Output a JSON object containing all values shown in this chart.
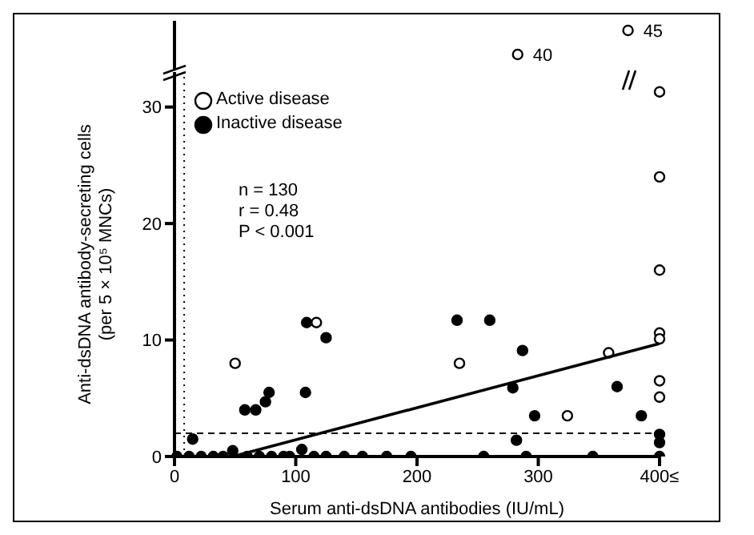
{
  "chart_data": [
    {
      "type": "scatter",
      "xlim": [
        0,
        400
      ],
      "ylim": [
        37,
        47
      ],
      "tick_labels": false,
      "marker": "circle",
      "series": [
        {
          "color": "#ffffff",
          "x": [
            283,
            374
          ],
          "values": [
            40,
            45
          ],
          "value_labels": [
            "40",
            "45"
          ]
        }
      ]
    },
    {
      "type": "scatter",
      "xlabel": "Serum anti-dsDNA antibodies (IU/mL)",
      "ylabel": "Anti-dsDNA antibody-secreting cells\n(per 5 × 10⁵ MNCs)",
      "xlim": [
        0,
        400
      ],
      "ylim": [
        0,
        33
      ],
      "xticks": [
        0,
        100,
        200,
        300,
        {
          "value": 400,
          "label": "400≤"
        }
      ],
      "yticks": [
        0,
        10,
        20,
        30
      ],
      "legend": "top left",
      "marker": "circle",
      "annotations": [
        "n = 130",
        "r = 0.48",
        "P < 0.001"
      ],
      "ref_lines": [
        {
          "axis": "x",
          "value": 8,
          "line_style": "dotted"
        },
        {
          "axis": "y",
          "value": 2,
          "line_style": "dashed"
        }
      ],
      "series": [
        {
          "name": "Active disease",
          "color": "#ffffff",
          "x": [
            50,
            117,
            235,
            358,
            324,
            400,
            400,
            400,
            400,
            400,
            400,
            400
          ],
          "values": [
            8,
            11.5,
            8,
            8.9,
            3.5,
            31.3,
            24,
            16,
            10.6,
            10.1,
            6.5,
            5.1
          ]
        },
        {
          "name": "Inactive disease",
          "color": "#000000",
          "x": [
            15,
            58,
            67,
            75,
            78,
            108,
            109,
            125,
            233,
            260,
            287,
            279,
            297,
            365,
            385,
            282,
            400,
            400,
            2,
            12,
            22,
            32,
            40,
            60,
            70,
            80,
            90,
            95,
            115,
            125,
            140,
            155,
            175,
            195,
            255,
            290,
            345,
            400,
            48,
            105
          ],
          "values": [
            1.5,
            4,
            4,
            4.7,
            5.5,
            5.5,
            11.5,
            10.2,
            11.7,
            11.7,
            9.1,
            5.9,
            3.5,
            6,
            3.5,
            1.4,
            1.9,
            1.2,
            0,
            0,
            0,
            0,
            0,
            0,
            0,
            0,
            0,
            0,
            0,
            0,
            0,
            0,
            0,
            0,
            0,
            0,
            0,
            0,
            0.5,
            0.6
          ]
        },
        {
          "type": "line",
          "color": "#000000",
          "marker": "none",
          "x": [
            48,
            400
          ],
          "values": [
            0,
            9.7
          ]
        }
      ]
    }
  ]
}
